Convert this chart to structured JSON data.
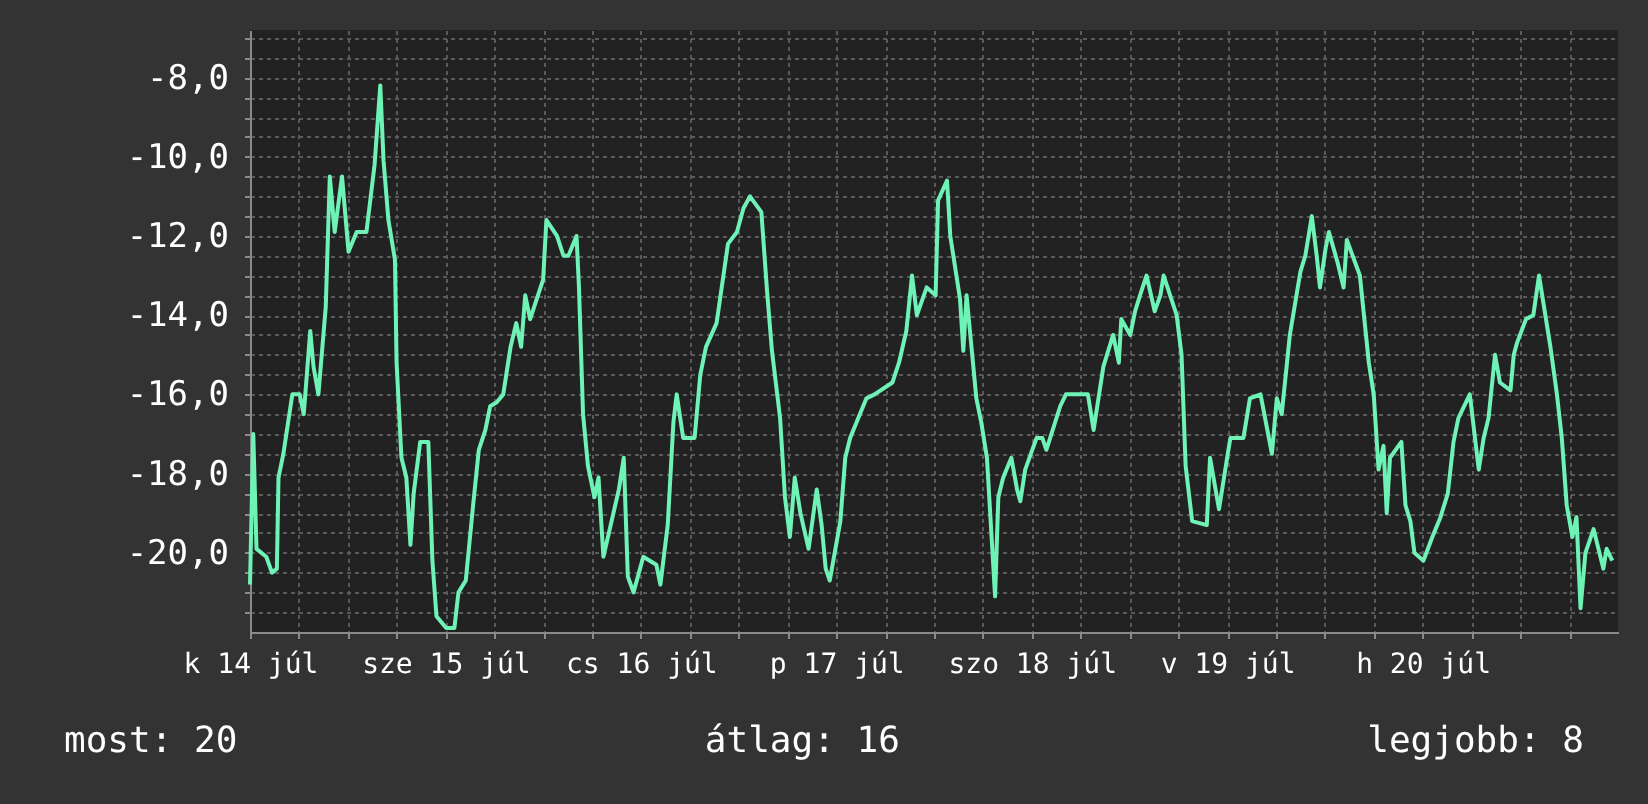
{
  "chart_data": {
    "type": "line",
    "xlim": [
      "--07-14T00:00",
      "--07-21T00:00"
    ],
    "ylim": [
      -22,
      -6.8
    ],
    "xticks": [
      {
        "value": "--07-14T00:00",
        "label": "k 14 júl"
      },
      {
        "value": "--07-14T06:00",
        "label": null
      },
      {
        "value": "--07-14T12:00",
        "label": null
      },
      {
        "value": "--07-14T18:00",
        "label": null
      },
      {
        "value": "--07-15T00:00",
        "label": "sze 15 júl"
      },
      {
        "value": "--07-15T06:00",
        "label": null
      },
      {
        "value": "--07-15T12:00",
        "label": null
      },
      {
        "value": "--07-15T18:00",
        "label": null
      },
      {
        "value": "--07-16T00:00",
        "label": "cs 16 júl"
      },
      {
        "value": "--07-16T06:00",
        "label": null
      },
      {
        "value": "--07-16T12:00",
        "label": null
      },
      {
        "value": "--07-16T18:00",
        "label": null
      },
      {
        "value": "--07-17T00:00",
        "label": "p 17 júl"
      },
      {
        "value": "--07-17T06:00",
        "label": null
      },
      {
        "value": "--07-17T12:00",
        "label": null
      },
      {
        "value": "--07-17T18:00",
        "label": null
      },
      {
        "value": "--07-18T00:00",
        "label": "szo 18 júl"
      },
      {
        "value": "--07-18T06:00",
        "label": null
      },
      {
        "value": "--07-18T12:00",
        "label": null
      },
      {
        "value": "--07-18T18:00",
        "label": null
      },
      {
        "value": "--07-19T00:00",
        "label": "v 19 júl"
      },
      {
        "value": "--07-19T06:00",
        "label": null
      },
      {
        "value": "--07-19T12:00",
        "label": null
      },
      {
        "value": "--07-19T18:00",
        "label": null
      },
      {
        "value": "--07-20T00:00",
        "label": "h 20 júl"
      },
      {
        "value": "--07-20T06:00",
        "label": null
      },
      {
        "value": "--07-20T12:00",
        "label": null
      },
      {
        "value": "--07-20T18:00",
        "label": null
      }
    ],
    "yticks": [
      {
        "value": -21.5,
        "label": null
      },
      {
        "value": -21,
        "label": null
      },
      {
        "value": -20.5,
        "label": null
      },
      {
        "value": -20,
        "label": "-20,0"
      },
      {
        "value": -19.5,
        "label": null
      },
      {
        "value": -19,
        "label": null
      },
      {
        "value": -18.5,
        "label": null
      },
      {
        "value": -18,
        "label": "-18,0"
      },
      {
        "value": -17.5,
        "label": null
      },
      {
        "value": -17,
        "label": null
      },
      {
        "value": -16.5,
        "label": null
      },
      {
        "value": -16,
        "label": "-16,0"
      },
      {
        "value": -15.5,
        "label": null
      },
      {
        "value": -15,
        "label": null
      },
      {
        "value": -14.5,
        "label": null
      },
      {
        "value": -14,
        "label": "-14,0"
      },
      {
        "value": -13.5,
        "label": null
      },
      {
        "value": -13,
        "label": null
      },
      {
        "value": -12.5,
        "label": null
      },
      {
        "value": -12,
        "label": "-12,0"
      },
      {
        "value": -11.5,
        "label": null
      },
      {
        "value": -11,
        "label": null
      },
      {
        "value": -10.5,
        "label": null
      },
      {
        "value": -10,
        "label": "-10,0"
      },
      {
        "value": -9.5,
        "label": null
      },
      {
        "value": -9,
        "label": null
      },
      {
        "value": -8.5,
        "label": null
      },
      {
        "value": -8,
        "label": "-8,0"
      },
      {
        "value": -7.5,
        "label": null
      },
      {
        "value": -7,
        "label": null
      }
    ],
    "grid": true,
    "marker": "none",
    "line_style": "solid",
    "annotations": [
      "most: 20",
      "átlag: 16",
      "legjobb: 8"
    ],
    "series": [
      {
        "color": "#6ff2b6",
        "x": [
          "--07-14T00:00",
          "--07-14T00:24",
          "--07-14T00:48",
          "--07-14T02:00",
          "--07-14T02:42",
          "--07-14T03:18",
          "--07-14T03:30",
          "--07-14T04:06",
          "--07-14T05:12",
          "--07-14T06:06",
          "--07-14T06:36",
          "--07-14T07:24",
          "--07-14T07:48",
          "--07-14T08:24",
          "--07-14T09:18",
          "--07-14T09:48",
          "--07-14T10:24",
          "--07-14T11:18",
          "--07-14T12:06",
          "--07-14T13:06",
          "--07-14T14:18",
          "--07-14T15:18",
          "--07-14T16:00",
          "--07-14T16:24",
          "--07-14T17:00",
          "--07-14T17:48",
          "--07-14T18:00",
          "--07-14T18:36",
          "--07-14T19:12",
          "--07-14T19:42",
          "--07-14T20:06",
          "--07-14T20:54",
          "--07-14T21:54",
          "--07-14T22:24",
          "--07-14T22:54",
          "--07-15T00:06",
          "--07-15T01:06",
          "--07-15T01:36",
          "--07-15T02:30",
          "--07-15T03:24",
          "--07-15T04:06",
          "--07-15T04:54",
          "--07-15T05:30",
          "--07-15T06:18",
          "--07-15T07:06",
          "--07-15T08:00",
          "--07-15T08:42",
          "--07-15T09:18",
          "--07-15T09:48",
          "--07-15T10:24",
          "--07-15T12:00",
          "--07-15T12:24",
          "--07-15T13:42",
          "--07-15T14:30",
          "--07-15T15:06",
          "--07-15T16:06",
          "--07-15T16:24",
          "--07-15T16:54",
          "--07-15T17:30",
          "--07-15T18:18",
          "--07-15T18:48",
          "--07-15T19:24",
          "--07-15T21:18",
          "--07-15T21:54",
          "--07-15T22:24",
          "--07-15T23:06",
          "--07-16T00:18",
          "--07-16T01:54",
          "--07-16T02:24",
          "--07-16T03:18",
          "--07-16T04:00",
          "--07-16T04:24",
          "--07-16T05:12",
          "--07-16T06:36",
          "--07-16T07:18",
          "--07-16T08:00",
          "--07-16T09:18",
          "--07-16T10:42",
          "--07-16T11:48",
          "--07-16T12:36",
          "--07-16T13:24",
          "--07-16T14:48",
          "--07-16T15:30",
          "--07-16T16:06",
          "--07-16T17:06",
          "--07-16T17:42",
          "--07-16T18:18",
          "--07-16T18:54",
          "--07-16T19:36",
          "--07-16T20:36",
          "--07-16T21:36",
          "--07-16T22:12",
          "--07-16T22:42",
          "--07-16T23:12",
          "--07-17T00:30",
          "--07-17T01:06",
          "--07-17T01:42",
          "--07-17T03:42",
          "--07-17T04:42",
          "--07-17T06:54",
          "--07-17T07:42",
          "--07-17T08:36",
          "--07-17T09:18",
          "--07-17T09:54",
          "--07-17T11:06",
          "--07-17T12:12",
          "--07-17T12:30",
          "--07-17T13:36",
          "--07-17T14:00",
          "--07-17T15:12",
          "--07-17T15:36",
          "--07-17T16:00",
          "--07-17T17:12",
          "--07-17T17:48",
          "--07-17T18:30",
          "--07-17T18:54",
          "--07-17T19:30",
          "--07-17T19:54",
          "--07-17T20:30",
          "--07-17T21:30",
          "--07-17T22:12",
          "--07-17T22:36",
          "--07-17T23:12",
          "--07-18T00:36",
          "--07-18T01:18",
          "--07-18T01:48",
          "--07-18T03:30",
          "--07-18T04:12",
          "--07-18T06:54",
          "--07-18T07:36",
          "--07-18T08:48",
          "--07-18T10:00",
          "--07-18T10:42",
          "--07-18T11:00",
          "--07-18T12:06",
          "--07-18T12:42",
          "--07-18T13:18",
          "--07-18T14:06",
          "--07-18T15:06",
          "--07-18T15:48",
          "--07-18T16:12",
          "--07-18T17:48",
          "--07-18T18:24",
          "--07-18T18:54",
          "--07-18T19:42",
          "--07-18T21:30",
          "--07-18T21:54",
          "--07-18T23:00",
          "--07-19T00:00",
          "--07-19T00:24",
          "--07-19T02:00",
          "--07-19T02:48",
          "--07-19T04:06",
          "--07-19T05:30",
          "--07-19T06:06",
          "--07-19T06:42",
          "--07-19T07:42",
          "--07-19T09:00",
          "--07-19T09:36",
          "--07-19T10:24",
          "--07-19T11:00",
          "--07-19T11:24",
          "--07-19T12:06",
          "--07-19T12:30",
          "--07-19T13:36",
          "--07-19T14:18",
          "--07-19T14:42",
          "--07-19T16:18",
          "--07-19T17:24",
          "--07-19T18:00",
          "--07-19T18:36",
          "--07-19T19:12",
          "--07-19T19:36",
          "--07-19T20:00",
          "--07-19T21:24",
          "--07-19T21:54",
          "--07-19T22:30",
          "--07-19T23:00",
          "--07-20T00:06",
          "--07-20T01:12",
          "--07-20T02:12",
          "--07-20T03:06",
          "--07-20T03:48",
          "--07-20T04:24",
          "--07-20T05:48",
          "--07-20T06:54",
          "--07-20T07:30",
          "--07-20T08:06",
          "--07-20T08:54",
          "--07-20T09:30",
          "--07-20T10:48",
          "--07-20T11:12",
          "--07-20T11:36",
          "--07-20T12:42",
          "--07-20T13:36",
          "--07-20T14:18",
          "--07-20T15:42",
          "--07-20T16:30",
          "--07-20T17:06",
          "--07-20T17:42",
          "--07-20T18:24",
          "--07-20T18:54",
          "--07-20T19:24",
          "--07-20T20:00",
          "--07-20T21:00",
          "--07-20T22:12",
          "--07-20T22:36",
          "--07-20T23:18"
        ],
        "values": [
          -20.8,
          -17.0,
          -19.9,
          -20.1,
          -20.5,
          -20.4,
          -18.1,
          -17.5,
          -16.0,
          -16.0,
          -16.5,
          -14.4,
          -15.3,
          -16.0,
          -13.8,
          -10.5,
          -11.9,
          -10.5,
          -12.4,
          -11.9,
          -11.9,
          -10.2,
          -8.2,
          -10.1,
          -11.6,
          -12.6,
          -15.2,
          -17.6,
          -18.1,
          -19.8,
          -18.5,
          -17.2,
          -17.2,
          -20.2,
          -21.6,
          -21.9,
          -21.9,
          -21.0,
          -20.7,
          -18.8,
          -17.4,
          -16.9,
          -16.3,
          -16.2,
          -16.0,
          -14.8,
          -14.2,
          -14.8,
          -13.5,
          -14.1,
          -13.1,
          -11.6,
          -12.0,
          -12.5,
          -12.5,
          -12.0,
          -13.3,
          -16.5,
          -17.8,
          -18.6,
          -18.1,
          -20.1,
          -18.4,
          -17.6,
          -20.6,
          -21.0,
          -20.1,
          -20.3,
          -20.8,
          -19.3,
          -16.7,
          -16.0,
          -17.1,
          -17.1,
          -15.5,
          -14.8,
          -14.2,
          -12.2,
          -11.9,
          -11.3,
          -11.0,
          -11.4,
          -13.4,
          -14.9,
          -16.6,
          -18.6,
          -19.6,
          -18.1,
          -19.0,
          -19.9,
          -18.4,
          -19.3,
          -20.4,
          -20.7,
          -19.2,
          -17.6,
          -17.1,
          -16.1,
          -16.0,
          -15.7,
          -15.2,
          -14.4,
          -13.0,
          -14.0,
          -13.3,
          -13.5,
          -11.1,
          -10.6,
          -12.0,
          -13.6,
          -14.9,
          -13.5,
          -16.1,
          -16.7,
          -17.6,
          -19.0,
          -21.1,
          -18.6,
          -18.1,
          -17.6,
          -18.4,
          -18.7,
          -17.9,
          -17.1,
          -17.1,
          -17.4,
          -16.3,
          -16.0,
          -16.0,
          -16.9,
          -15.3,
          -14.5,
          -15.2,
          -14.1,
          -14.5,
          -13.9,
          -13.5,
          -13.0,
          -13.9,
          -13.5,
          -13.0,
          -14.0,
          -15.0,
          -17.8,
          -19.2,
          -19.3,
          -17.6,
          -18.9,
          -17.6,
          -17.1,
          -17.1,
          -16.1,
          -16.0,
          -17.5,
          -16.1,
          -16.5,
          -14.5,
          -12.9,
          -12.5,
          -11.5,
          -12.5,
          -13.3,
          -12.3,
          -11.9,
          -12.7,
          -13.3,
          -12.1,
          -13.0,
          -15.2,
          -16.0,
          -17.9,
          -17.3,
          -19.0,
          -17.6,
          -17.2,
          -18.8,
          -19.2,
          -20.0,
          -20.2,
          -19.6,
          -19.1,
          -18.5,
          -17.2,
          -16.6,
          -16.0,
          -17.9,
          -17.1,
          -16.6,
          -15.0,
          -15.7,
          -15.9,
          -15.0,
          -14.7,
          -14.1,
          -14.0,
          -13.0,
          -14.8,
          -16.0,
          -17.1,
          -18.8,
          -19.6,
          -19.1,
          -21.4,
          -20.0,
          -19.4,
          -20.4,
          -19.9,
          -20.2
        ]
      }
    ]
  }
}
